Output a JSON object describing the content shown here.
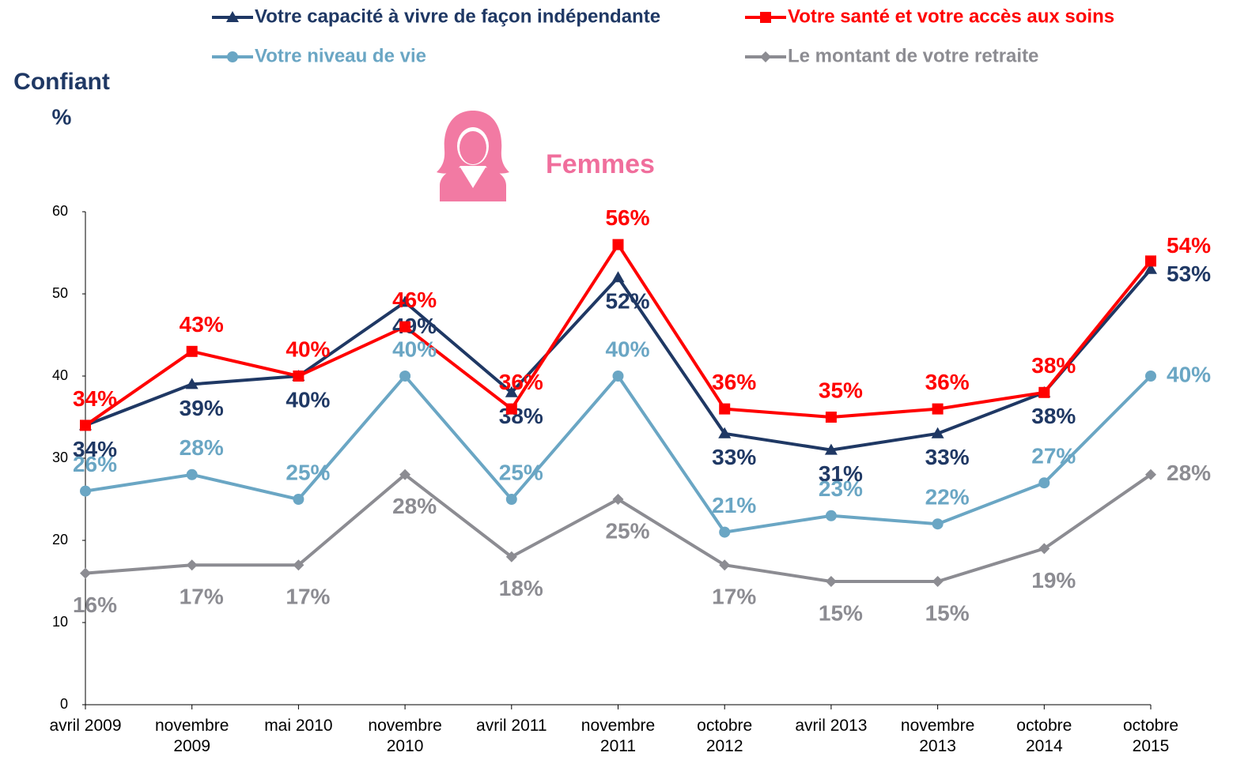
{
  "chart_data": {
    "type": "line",
    "title": "Femmes",
    "y_label": "Confiant",
    "y_unit": "%",
    "categories": [
      "avril 2009",
      "novembre\n2009",
      "mai 2010",
      "novembre\n2010",
      "avril 2011",
      "novembre\n2011",
      "octobre\n2012",
      "avril 2013",
      "novembre\n2013",
      "octobre\n2014",
      "octobre\n2015"
    ],
    "series": [
      {
        "name": "Votre capacité à vivre de façon indépendante",
        "color": "#1f3864",
        "marker": "triangle",
        "values": [
          34,
          39,
          40,
          49,
          38,
          52,
          33,
          31,
          33,
          38,
          53
        ],
        "value_labels": [
          "34%",
          "39%",
          "40%",
          "49%",
          "38%",
          "52%",
          "33%",
          "31%",
          "33%",
          "38%",
          "53%"
        ]
      },
      {
        "name": "Votre santé et votre accès aux soins",
        "color": "#ff0000",
        "marker": "square",
        "values": [
          34,
          43,
          40,
          46,
          36,
          56,
          36,
          35,
          36,
          38,
          54
        ],
        "value_labels": [
          "34%",
          "43%",
          "40%",
          "46%",
          "36%",
          "56%",
          "36%",
          "35%",
          "36%",
          "38%",
          "54%"
        ]
      },
      {
        "name": "Votre niveau de vie",
        "color": "#6aa6c4",
        "marker": "circle",
        "values": [
          26,
          28,
          25,
          40,
          25,
          40,
          21,
          23,
          22,
          27,
          40
        ],
        "value_labels": [
          "26%",
          "28%",
          "25%",
          "40%",
          "25%",
          "40%",
          "21%",
          "23%",
          "22%",
          "27%",
          "40%"
        ]
      },
      {
        "name": "Le montant de votre retraite",
        "color": "#8c8c92",
        "marker": "diamond",
        "values": [
          16,
          17,
          17,
          28,
          18,
          25,
          17,
          15,
          15,
          19,
          28
        ],
        "value_labels": [
          "16%",
          "17%",
          "17%",
          "28%",
          "18%",
          "25%",
          "17%",
          "15%",
          "15%",
          "19%",
          "28%"
        ]
      }
    ],
    "ylim": [
      0,
      60
    ],
    "yticks": [
      0,
      10,
      20,
      30,
      40,
      50,
      60
    ],
    "grid": false
  }
}
